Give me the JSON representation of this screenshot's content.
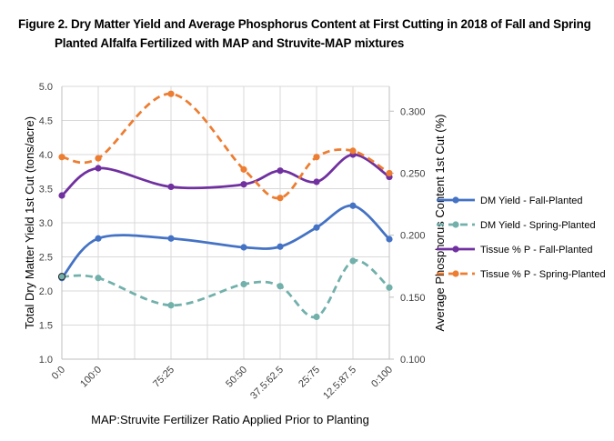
{
  "figure": {
    "title_line1": "Figure 2. Dry Matter Yield and Average Phosphorus Content at First Cutting in 2018 of Fall and Spring",
    "title_line2": "Planted Alfalfa Fertilized with MAP and Struvite-MAP mixtures"
  },
  "chart_data": {
    "type": "line",
    "title": "Figure 2. Dry Matter Yield and Average Phosphorus Content at First Cutting in 2018 of Fall and Spring Planted Alfalfa Fertilized with MAP and Struvite-MAP mixtures",
    "xlabel": "MAP:Struvite Fertilizer Ratio Applied Prior to Planting",
    "ylabel": "Total Dry Matter Yield 1st Cut (tons/acre)",
    "y2label": "Average Phosphorus Content 1st Cut (%)",
    "x_scale": "linear positions 0-9 (labels placed at 0,1,3,5,6,7,8,9)",
    "x": [
      0,
      1,
      3,
      5,
      6,
      7,
      8,
      9
    ],
    "categories": [
      "0:0",
      "100:0",
      "75:25",
      "50:50",
      "37.5:62.5",
      "25:75",
      "12.5:87.5",
      "0:100"
    ],
    "xlim": [
      0,
      9
    ],
    "ylim": [
      1.0,
      5.0
    ],
    "yticks": [
      "1.0",
      "1.5",
      "2.0",
      "2.5",
      "3.0",
      "3.5",
      "4.0",
      "4.5",
      "5.0"
    ],
    "y2lim": [
      0.1,
      0.32
    ],
    "y2ticks": [
      "0.100",
      "0.150",
      "0.200",
      "0.250",
      "0.300"
    ],
    "grid": true,
    "legend_position": "right",
    "series": [
      {
        "name": "DM Yield - Fall-Planted",
        "axis": "primary",
        "color": "#4472C4",
        "dashed": false,
        "values": [
          2.19,
          2.77,
          2.77,
          2.64,
          2.65,
          2.93,
          3.25,
          2.76
        ]
      },
      {
        "name": "DM Yield - Spring-Planted",
        "axis": "primary",
        "color": "#72B0AB",
        "dashed": true,
        "values": [
          2.21,
          2.19,
          1.79,
          2.1,
          2.07,
          1.62,
          2.44,
          2.05
        ]
      },
      {
        "name": "Tissue % P - Fall-Planted",
        "axis": "secondary",
        "color": "#7030A0",
        "dashed": false,
        "values": [
          0.232,
          0.254,
          0.239,
          0.241,
          0.252,
          0.243,
          0.265,
          0.247
        ]
      },
      {
        "name": "Tissue % P - Spring-Planted",
        "axis": "secondary",
        "color": "#ED7D31",
        "dashed": true,
        "values": [
          0.263,
          0.262,
          0.314,
          0.253,
          0.23,
          0.263,
          0.268,
          0.25
        ]
      }
    ]
  }
}
